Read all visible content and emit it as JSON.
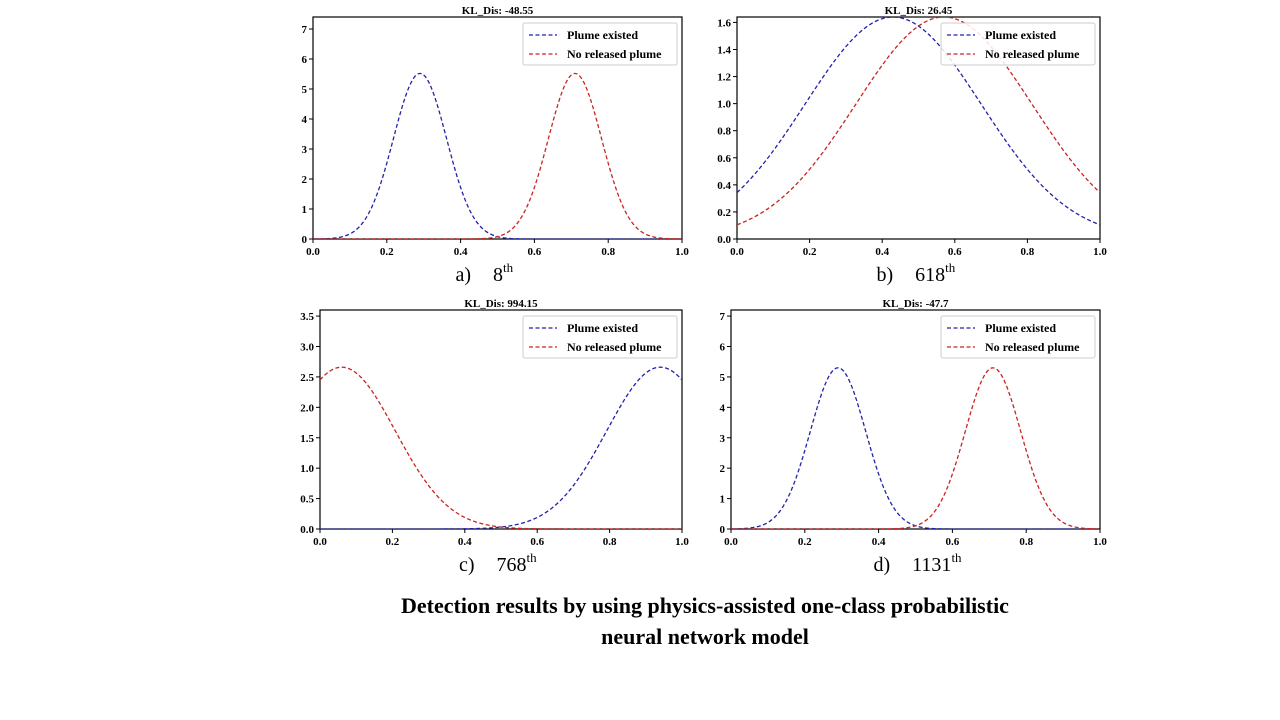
{
  "caption": {
    "line1": "Detection results by using  physics-assisted one-class probabilistic",
    "line2": "neural network model"
  },
  "chart_data": [
    {
      "type": "line",
      "panel_label": "a)",
      "panel_index": "8",
      "panel_suffix": "th",
      "title": "KL_Dis: -48.55",
      "xlim": [
        0.0,
        1.0
      ],
      "ylim": [
        0.0,
        7.4
      ],
      "xticks": [
        "0.0",
        "0.2",
        "0.4",
        "0.6",
        "0.8",
        "1.0"
      ],
      "yticks": [
        "0",
        "1",
        "2",
        "3",
        "4",
        "5",
        "6",
        "7"
      ],
      "legend_position": "top-right",
      "series": [
        {
          "name": "Plume existed",
          "color": "#2222aa",
          "shape": "gaussian",
          "mu": 0.29,
          "sigma": 0.072,
          "peak": 5.52
        },
        {
          "name": "No released plume",
          "color": "#cc2222",
          "shape": "gaussian",
          "mu": 0.71,
          "sigma": 0.072,
          "peak": 5.52
        }
      ]
    },
    {
      "type": "line",
      "panel_label": "b)",
      "panel_index": "618",
      "panel_suffix": "th",
      "title": "KL_Dis: 26.45",
      "xlim": [
        0.0,
        1.0
      ],
      "ylim": [
        0.0,
        1.64
      ],
      "xticks": [
        "0.0",
        "0.2",
        "0.4",
        "0.6",
        "0.8",
        "1.0"
      ],
      "yticks": [
        "0.0",
        "0.2",
        "0.4",
        "0.6",
        "0.8",
        "1.0",
        "1.2",
        "1.4",
        "1.6"
      ],
      "legend_position": "top-right",
      "series": [
        {
          "name": "Plume existed",
          "color": "#2222aa",
          "shape": "gaussian",
          "mu": 0.43,
          "sigma": 0.243,
          "peak": 1.64
        },
        {
          "name": "No released plume",
          "color": "#cc2222",
          "shape": "gaussian",
          "mu": 0.57,
          "sigma": 0.243,
          "peak": 1.64
        }
      ]
    },
    {
      "type": "line",
      "panel_label": "c)",
      "panel_index": "768",
      "panel_suffix": "th",
      "title": "KL_Dis: 994.15",
      "xlim": [
        0.0,
        1.0
      ],
      "ylim": [
        0.0,
        3.6
      ],
      "xticks": [
        "0.0",
        "0.2",
        "0.4",
        "0.6",
        "0.8",
        "1.0"
      ],
      "yticks": [
        "0.0",
        "0.5",
        "1.0",
        "1.5",
        "2.0",
        "2.5",
        "3.0",
        "3.5"
      ],
      "legend_position": "top-right",
      "series": [
        {
          "name": "Plume existed",
          "color": "#2222aa",
          "shape": "gaussian",
          "mu": 0.94,
          "sigma": 0.148,
          "peak": 2.66
        },
        {
          "name": "No released plume",
          "color": "#cc2222",
          "shape": "gaussian",
          "mu": 0.06,
          "sigma": 0.148,
          "peak": 2.66
        }
      ]
    },
    {
      "type": "line",
      "panel_label": "d)",
      "panel_index": "1131",
      "panel_suffix": "th",
      "title": "KL_Dis: -47.7",
      "xlim": [
        0.0,
        1.0
      ],
      "ylim": [
        0.0,
        7.2
      ],
      "xticks": [
        "0.0",
        "0.2",
        "0.4",
        "0.6",
        "0.8",
        "1.0"
      ],
      "yticks": [
        "0",
        "1",
        "2",
        "3",
        "4",
        "5",
        "6",
        "7"
      ],
      "legend_position": "top-right",
      "series": [
        {
          "name": "Plume existed",
          "color": "#2222aa",
          "shape": "gaussian",
          "mu": 0.29,
          "sigma": 0.075,
          "peak": 5.3
        },
        {
          "name": "No released plume",
          "color": "#cc2222",
          "shape": "gaussian",
          "mu": 0.71,
          "sigma": 0.075,
          "peak": 5.3
        }
      ]
    }
  ]
}
